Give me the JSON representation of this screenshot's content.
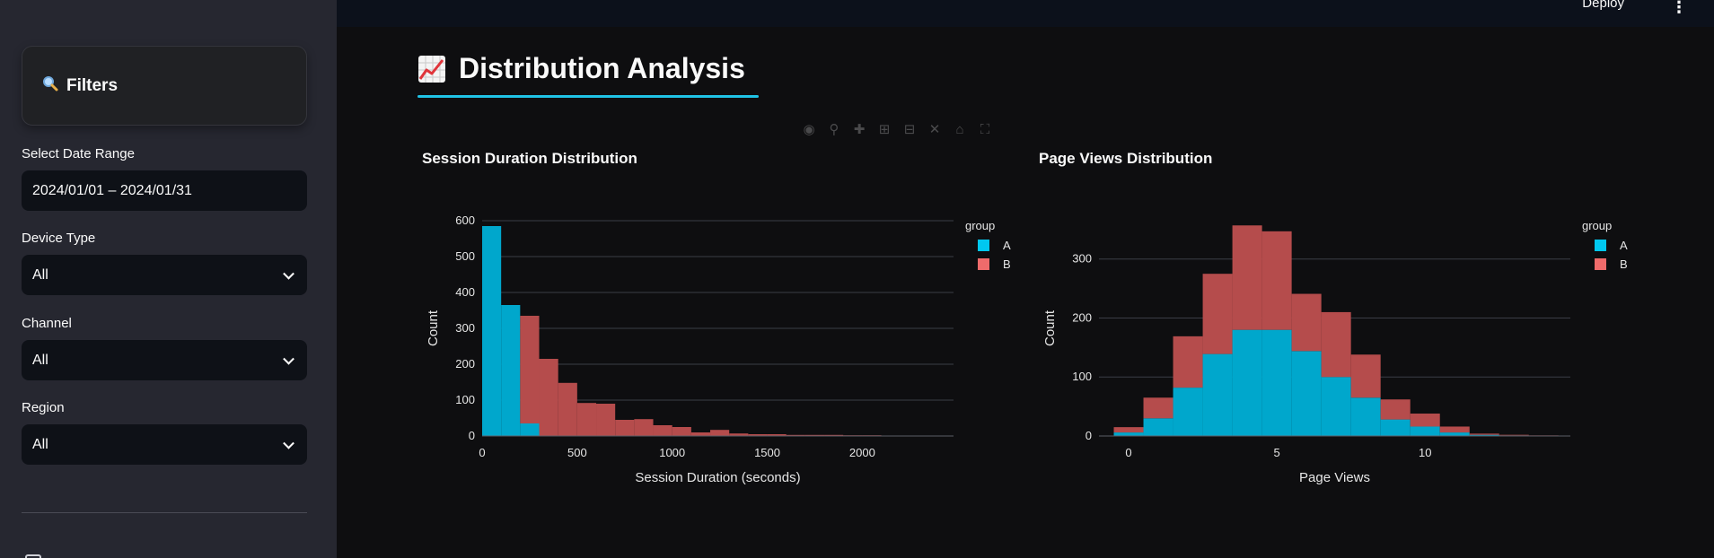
{
  "sidebar": {
    "filters_icon": "search-icon",
    "filters_title": "Filters",
    "date_label": "Select Date Range",
    "date_value": "2024/01/01 – 2024/01/31",
    "device_label": "Device Type",
    "device_value": "All",
    "channel_label": "Channel",
    "channel_value": "All",
    "region_label": "Region",
    "region_value": "All"
  },
  "header": {
    "deploy_label": "Deploy",
    "menu_icon": "kebab-menu-icon"
  },
  "main": {
    "title": "Distribution Analysis",
    "title_icon": "chart-increasing-icon",
    "accent_color": "#1fc3e6"
  },
  "colors": {
    "A": "#00a7cc",
    "B": "#b54c4c",
    "legend_A": "#00c8f0",
    "legend_B": "#ef6b6b"
  },
  "chart_data": [
    {
      "type": "bar",
      "title": "Session Duration Distribution",
      "xlabel": "Session Duration (seconds)",
      "ylabel": "Count",
      "xlim": [
        0,
        2480
      ],
      "ylim": [
        0,
        600
      ],
      "xticks": [
        0,
        500,
        1000,
        1500,
        2000
      ],
      "yticks": [
        0,
        100,
        200,
        300,
        400,
        500,
        600
      ],
      "bin_width": 100,
      "bin_start": 0,
      "legend_title": "group",
      "legend_position": "top-right",
      "grid": true,
      "series": [
        {
          "name": "A",
          "values": [
            585,
            365,
            35,
            0,
            0,
            0,
            0,
            0,
            0,
            0,
            0,
            0,
            0,
            0,
            0,
            0,
            0,
            0,
            0,
            0,
            0,
            0,
            0,
            0,
            0
          ]
        },
        {
          "name": "B",
          "values": [
            0,
            0,
            300,
            215,
            148,
            92,
            90,
            45,
            47,
            30,
            25,
            10,
            17,
            7,
            5,
            5,
            3,
            3,
            3,
            2,
            2,
            1,
            1,
            1,
            1
          ]
        }
      ]
    },
    {
      "type": "bar",
      "title": "Page Views Distribution",
      "xlabel": "Page Views",
      "ylabel": "Count",
      "xlim": [
        -1,
        14.9
      ],
      "ylim": [
        0,
        365
      ],
      "xticks": [
        0,
        5,
        10
      ],
      "yticks": [
        0,
        100,
        200,
        300
      ],
      "bin_width": 1,
      "bin_start": -0.5,
      "legend_title": "group",
      "legend_position": "top-right",
      "grid": true,
      "series": [
        {
          "name": "A",
          "values": [
            6,
            30,
            82,
            139,
            180,
            180,
            144,
            100,
            65,
            28,
            16,
            6,
            2,
            1,
            0
          ]
        },
        {
          "name": "B",
          "values": [
            9,
            35,
            87,
            136,
            177,
            167,
            97,
            110,
            73,
            34,
            22,
            10,
            2,
            1,
            1
          ]
        }
      ]
    }
  ]
}
